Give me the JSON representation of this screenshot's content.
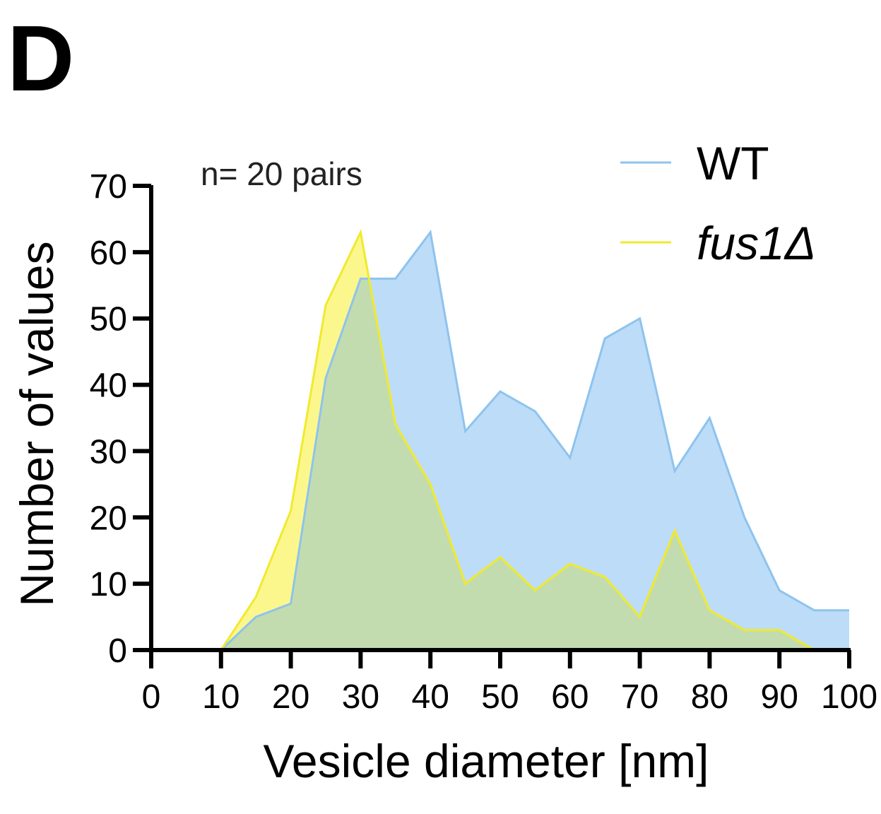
{
  "panel_label": "D",
  "annotation": "n= 20 pairs",
  "chart_data": {
    "type": "area",
    "xlabel": "Vesicle diameter [nm]",
    "ylabel": "Number of values",
    "xlim": [
      0,
      100
    ],
    "ylim": [
      0,
      70
    ],
    "xticks": [
      "0",
      "10",
      "20",
      "30",
      "40",
      "50",
      "60",
      "70",
      "80",
      "90",
      "100"
    ],
    "yticks": [
      "0",
      "10",
      "20",
      "30",
      "40",
      "50",
      "60",
      "70"
    ],
    "legend_position": "top-right",
    "x": [
      10,
      15,
      20,
      25,
      30,
      35,
      40,
      45,
      50,
      55,
      60,
      65,
      70,
      75,
      80,
      85,
      90,
      95,
      100
    ],
    "series": [
      {
        "name": "WT",
        "color": "#8ec3ee",
        "fill": "#bddcf7",
        "values": [
          0,
          5,
          7,
          41,
          56,
          56,
          63,
          33,
          39,
          36,
          29,
          47,
          50,
          27,
          35,
          20,
          9,
          6,
          6
        ]
      },
      {
        "name": "fus1Δ",
        "color": "#f0ea2e",
        "fill": "#fbf78c",
        "values": [
          0,
          8,
          21,
          52,
          63,
          34,
          25,
          10,
          14,
          9,
          13,
          11,
          5,
          18,
          6,
          3,
          3,
          0,
          0
        ]
      }
    ],
    "overlap_fill": "#c3dcaf"
  }
}
